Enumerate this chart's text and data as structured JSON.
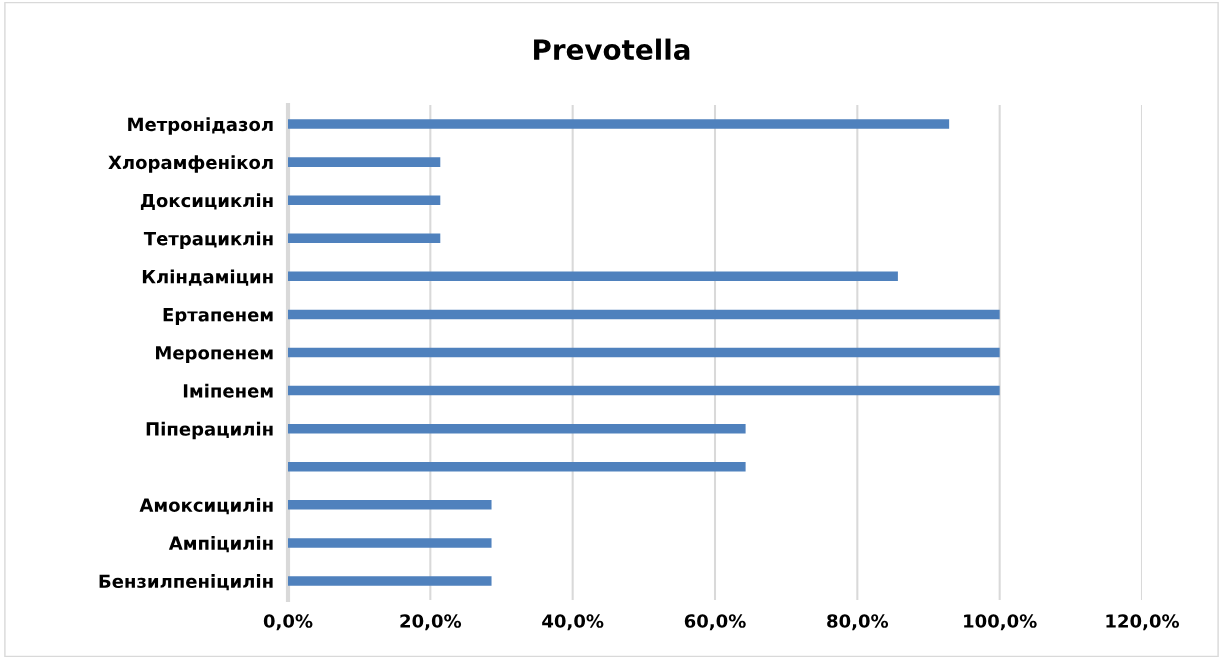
{
  "chart_data": {
    "type": "bar",
    "orientation": "horizontal",
    "title": "Prevotella",
    "categories": [
      "Метронідазол",
      "Хлорамфенікол",
      "Доксициклін",
      "Тетрациклін",
      "Кліндаміцин",
      "Ертапенем",
      "Меропенем",
      "Іміпенем",
      "Піперацилін",
      null,
      "Амоксицилін",
      "Ампіцилін",
      "Бензилпеніцилін"
    ],
    "values": [
      92.9,
      21.4,
      21.4,
      21.4,
      85.7,
      100,
      100,
      100,
      64.3,
      64.3,
      28.6,
      28.6,
      28.6
    ],
    "color": "#4f81bd",
    "xlim": [
      0,
      120
    ],
    "xticks": [
      {
        "value": 0,
        "label": "0,0%"
      },
      {
        "value": 20,
        "label": "20,0%"
      },
      {
        "value": 40,
        "label": "40,0%"
      },
      {
        "value": 60,
        "label": "60,0%"
      },
      {
        "value": 80,
        "label": "80,0%"
      },
      {
        "value": 100,
        "label": "100,0%"
      },
      {
        "value": 120,
        "label": "120,0%"
      }
    ],
    "grid": "x"
  }
}
